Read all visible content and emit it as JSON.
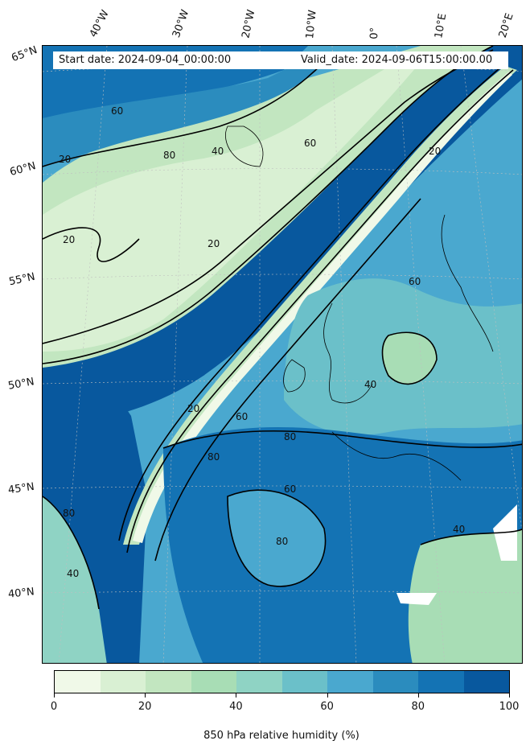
{
  "map": {
    "start_date": "Start date: 2024-09-04_00:00:00",
    "valid_date": "Valid_date: 2024-09-06T15:00:00.00",
    "lon_labels": [
      "40°W",
      "30°W",
      "20°W",
      "10°W",
      "0°",
      "10°E",
      "20°E"
    ],
    "lat_labels": [
      "65°N",
      "60°N",
      "55°N",
      "50°N",
      "45°N",
      "40°N"
    ],
    "contour_labels": [
      "20",
      "40",
      "60",
      "80"
    ]
  },
  "colorbar": {
    "title": "850 hPa relative humidity (%)",
    "ticks": [
      "0",
      "20",
      "40",
      "60",
      "80",
      "100"
    ],
    "colors": [
      "#f0f9e8",
      "#d9f0d3",
      "#c2e6c0",
      "#a8ddb5",
      "#8fd3c4",
      "#6bc0c9",
      "#4aa8cf",
      "#2b8cbe",
      "#1473b4",
      "#08589e"
    ]
  }
}
